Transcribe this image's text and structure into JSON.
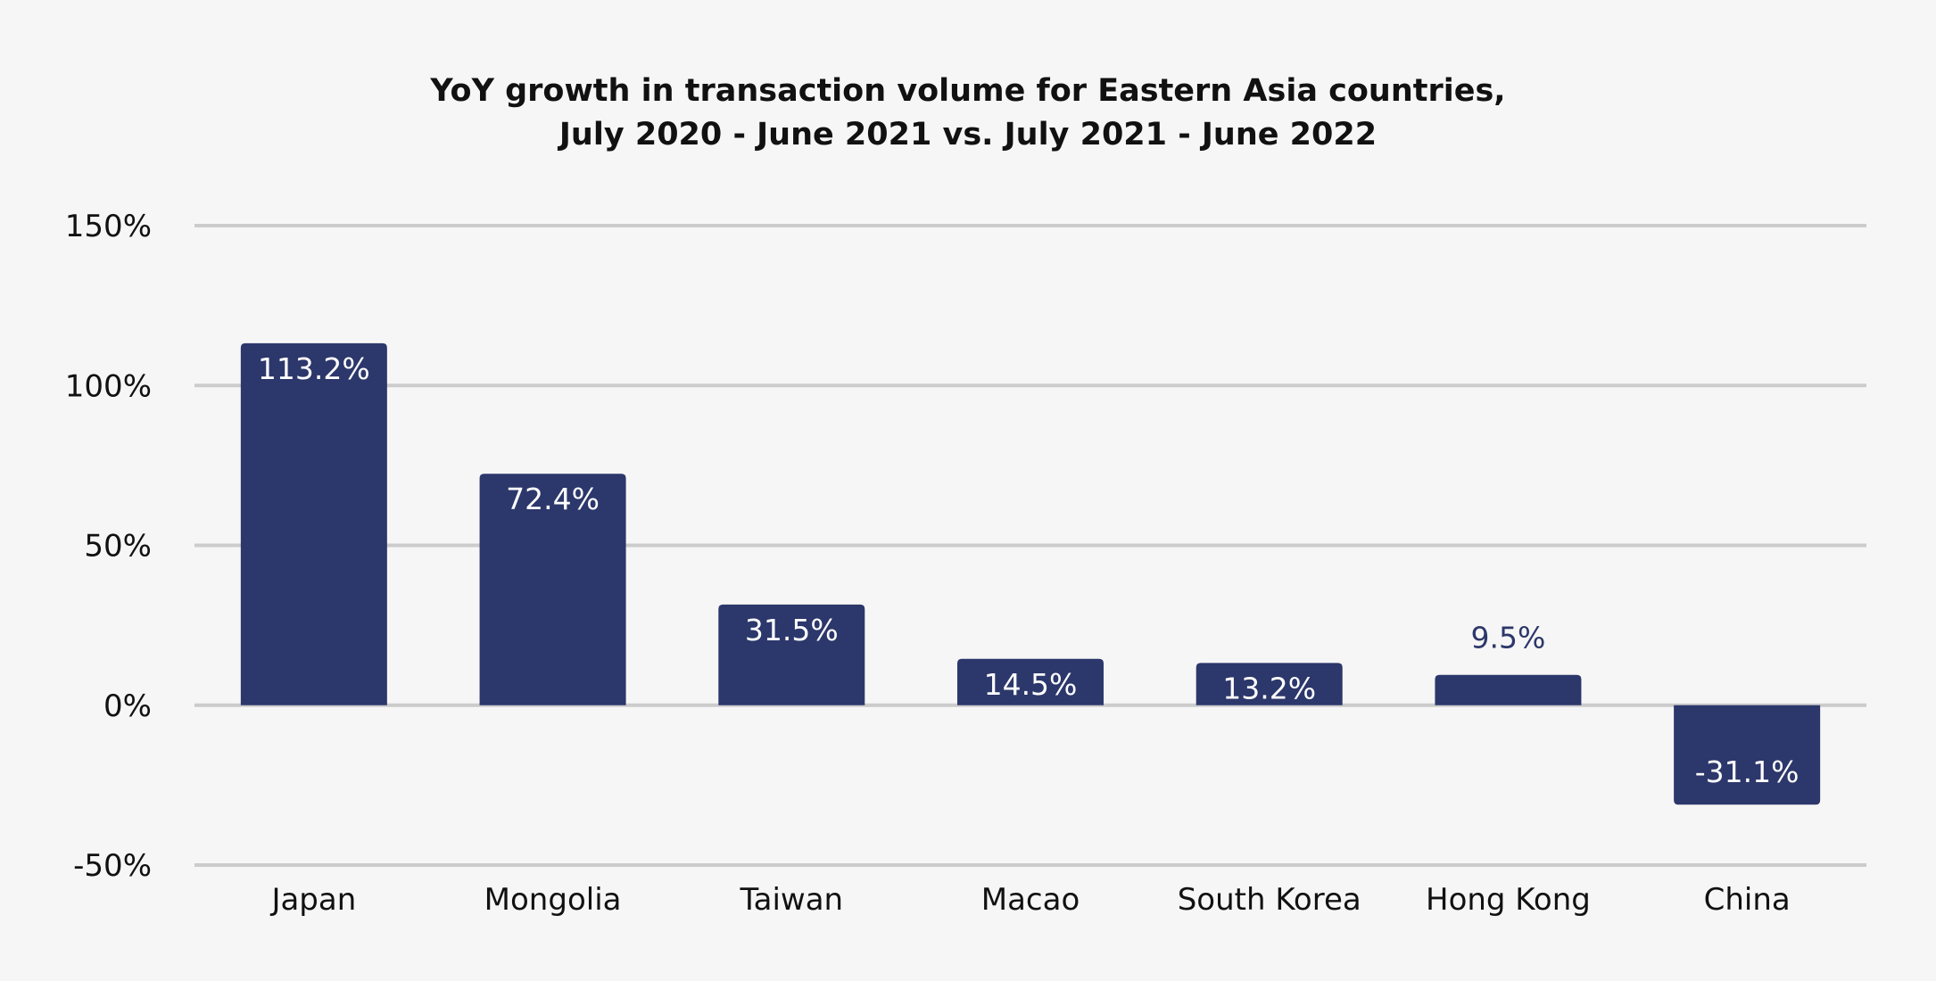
{
  "chart_data": {
    "type": "bar",
    "title_lines": [
      "YoY growth in transaction volume for Eastern Asia countries,",
      "July 2020 - June 2021 vs. July 2021 - June 2022"
    ],
    "xlabel": "",
    "ylabel": "",
    "categories": [
      "Japan",
      "Mongolia",
      "Taiwan",
      "Macao",
      "South Korea",
      "Hong Kong",
      "China"
    ],
    "values": [
      113.2,
      72.4,
      31.5,
      14.5,
      13.2,
      9.5,
      -31.1
    ],
    "data_labels": [
      "113.2%",
      "72.4%",
      "31.5%",
      "14.5%",
      "13.2%",
      "9.5%",
      "-31.1%"
    ],
    "ylim": [
      -50,
      150
    ],
    "yticks": [
      150,
      100,
      50,
      0,
      -50
    ],
    "ytick_labels": [
      "150%",
      "100%",
      "50%",
      "0%",
      "-50%"
    ],
    "grid": true,
    "legend": "none",
    "colors": {
      "bar": "#2c376b",
      "grid": "#cccccc",
      "background": "#f6f6f6",
      "label_inside": "#ffffff",
      "label_outside": "#2c376b"
    }
  }
}
